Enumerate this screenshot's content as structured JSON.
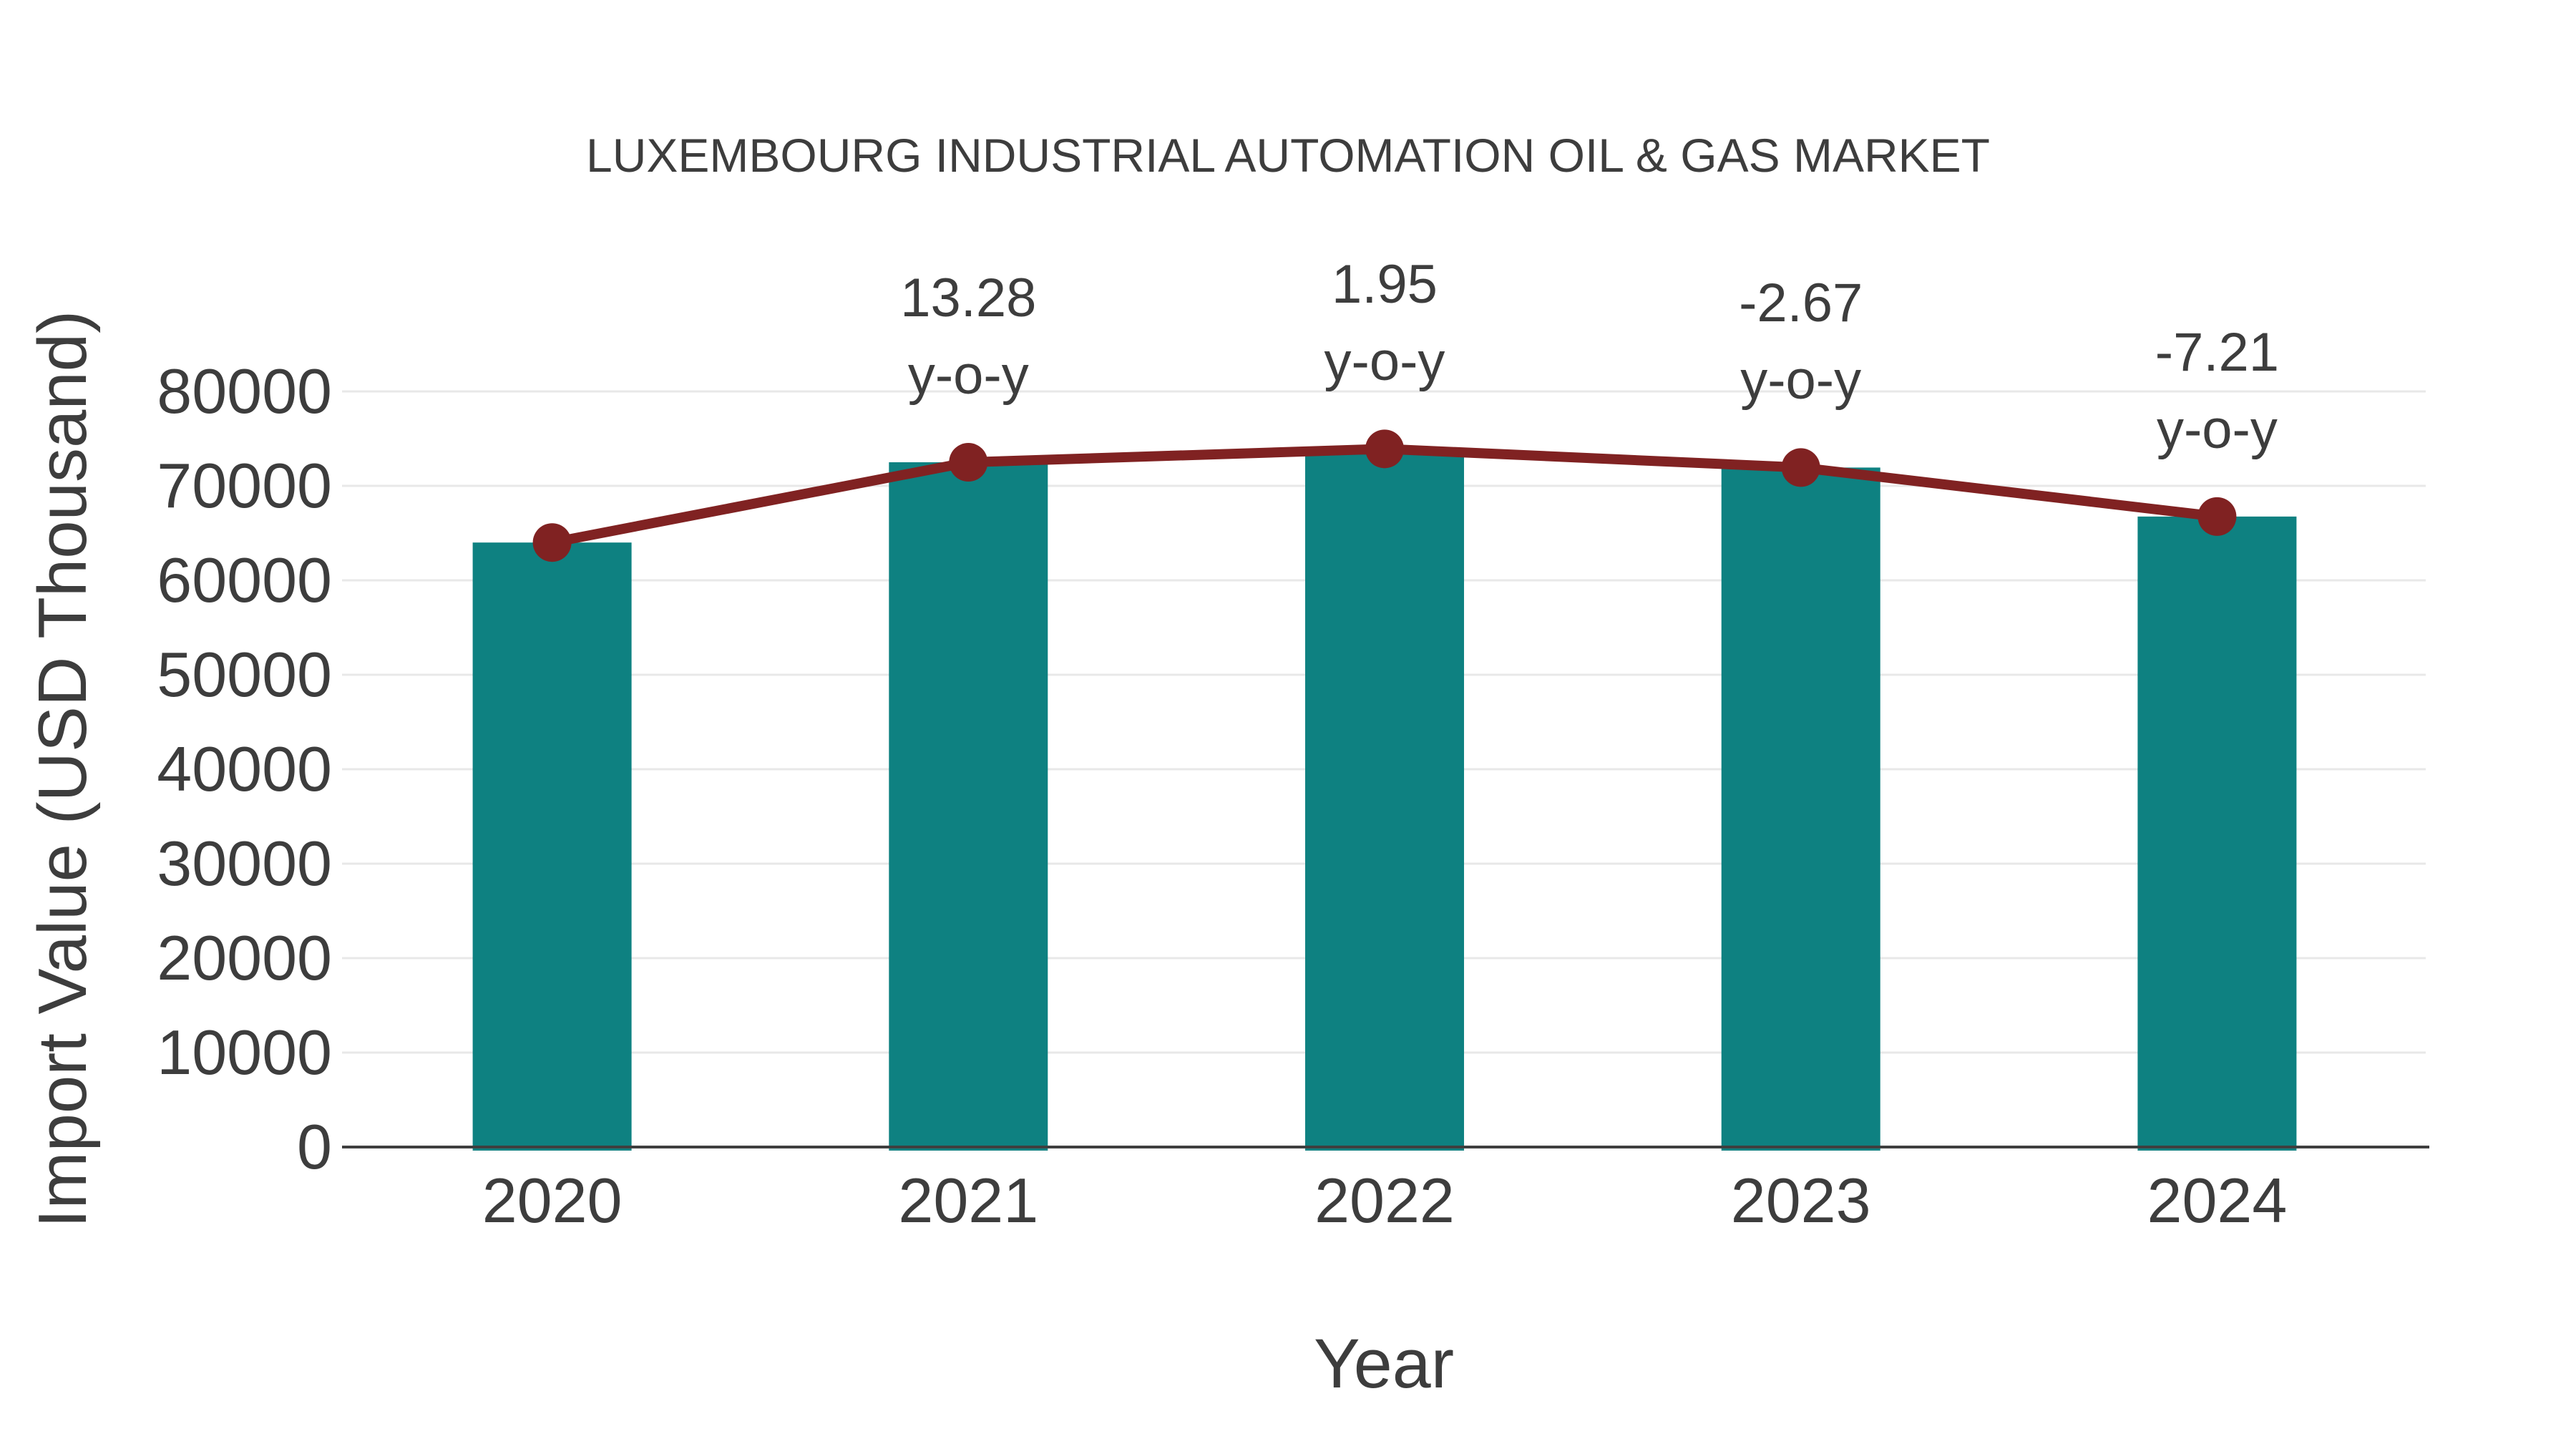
{
  "title": "LUXEMBOURG INDUSTRIAL AUTOMATION OIL & GAS MARKET",
  "chart_data": {
    "type": "bar",
    "overlay_line": true,
    "title": "LUXEMBOURG INDUSTRIAL AUTOMATION OIL & GAS MARKET",
    "xlabel": "Year",
    "ylabel": "Import Value (USD Thousand)",
    "categories": [
      "2020",
      "2021",
      "2022",
      "2023",
      "2024"
    ],
    "values": [
      64000,
      72499,
      73913,
      71939,
      66752
    ],
    "growth_labels": [
      null,
      "13.28",
      "1.95",
      "-2.67",
      "-7.21"
    ],
    "growth_suffix": "y-o-y",
    "ylim": [
      0,
      80000
    ],
    "ytick_labels": [
      "0",
      "10000",
      "20000",
      "30000",
      "40000",
      "50000",
      "60000",
      "70000",
      "80000"
    ],
    "ytick_values": [
      0,
      10000,
      20000,
      30000,
      40000,
      50000,
      60000,
      70000,
      80000
    ],
    "grid": "horizontal",
    "legend": "none",
    "bar_color": "#0e8181",
    "line_color": "#802222",
    "grid_color": "#e8e8e8",
    "axis_color": "#3f3f3f",
    "text_color": "#3d3d3d"
  }
}
